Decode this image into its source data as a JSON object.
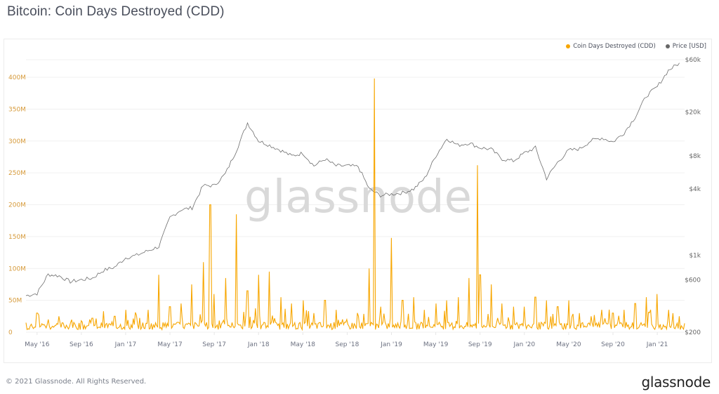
{
  "header": {
    "title": "Bitcoin: Coin Days Destroyed (CDD)"
  },
  "legend": {
    "items": [
      {
        "label": "Coin Days Destroyed (CDD)",
        "color": "#f7a600"
      },
      {
        "label": "Price [USD]",
        "color": "#666666"
      }
    ]
  },
  "watermark": "glassnode",
  "footer": {
    "copyright": "© 2021 Glassnode. All Rights Reserved.",
    "logo": "glassnode"
  },
  "colors": {
    "cdd": "#f7a600",
    "price": "#6e6e6e",
    "left_axis": "#d69a3a",
    "right_axis": "#666666",
    "grid": "#f0f0f0",
    "watermark": "#d9d9d9"
  },
  "chart_data": {
    "type": "line",
    "title": "Bitcoin: Coin Days Destroyed (CDD)",
    "xlabel": "",
    "ylabel_left": "Coin Days Destroyed (CDD)",
    "ylabel_right": "Price [USD]",
    "grid": true,
    "legend_position": "top-right",
    "x_ticks": [
      "May '16",
      "Sep '16",
      "Jan '17",
      "May '17",
      "Sep '17",
      "Jan '18",
      "May '18",
      "Sep '18",
      "Jan '19",
      "May '19",
      "Sep '19",
      "Jan '20",
      "May '20",
      "Sep '20",
      "Jan '21"
    ],
    "y_left_ticks": [
      "0",
      "50M",
      "100M",
      "150M",
      "200M",
      "250M",
      "300M",
      "350M",
      "400M"
    ],
    "y_left_range": [
      0,
      420000000
    ],
    "y_right_ticks": [
      "$200",
      "$600",
      "$1k",
      "$4k",
      "$8k",
      "$20k",
      "$60k"
    ],
    "y_right_scale": "log",
    "y_right_range": [
      200,
      60000
    ],
    "series": [
      {
        "name": "Coin Days Destroyed (CDD)",
        "axis": "left",
        "color": "#f7a600",
        "x": [
          "2016-04",
          "2016-05",
          "2016-06",
          "2016-07",
          "2016-08",
          "2016-09",
          "2016-10",
          "2016-11",
          "2016-12",
          "2017-01",
          "2017-02",
          "2017-03",
          "2017-04",
          "2017-05",
          "2017-06",
          "2017-07",
          "2017-08",
          "2017-08-20",
          "2017-09",
          "2017-10",
          "2017-11",
          "2017-12",
          "2018-01",
          "2018-02",
          "2018-03",
          "2018-04",
          "2018-05",
          "2018-06",
          "2018-07",
          "2018-08",
          "2018-09",
          "2018-10",
          "2018-11",
          "2018-11-15",
          "2018-12",
          "2019-01",
          "2019-02",
          "2019-03",
          "2019-04",
          "2019-05",
          "2019-06",
          "2019-07",
          "2019-08",
          "2019-08-25",
          "2019-09",
          "2019-10",
          "2019-11",
          "2019-12",
          "2020-01",
          "2020-02",
          "2020-03",
          "2020-04",
          "2020-05",
          "2020-06",
          "2020-07",
          "2020-08",
          "2020-09",
          "2020-10",
          "2020-11",
          "2020-12",
          "2021-01",
          "2021-02",
          "2021-03"
        ],
        "values": [
          15000000,
          30000000,
          20000000,
          25000000,
          15000000,
          18000000,
          22000000,
          15000000,
          25000000,
          35000000,
          20000000,
          35000000,
          90000000,
          40000000,
          45000000,
          75000000,
          110000000,
          200000000,
          60000000,
          85000000,
          185000000,
          65000000,
          90000000,
          95000000,
          55000000,
          45000000,
          50000000,
          30000000,
          50000000,
          35000000,
          20000000,
          25000000,
          100000000,
          398000000,
          40000000,
          148000000,
          50000000,
          55000000,
          35000000,
          45000000,
          50000000,
          55000000,
          85000000,
          262000000,
          90000000,
          75000000,
          45000000,
          40000000,
          40000000,
          55000000,
          50000000,
          40000000,
          50000000,
          30000000,
          25000000,
          35000000,
          30000000,
          35000000,
          45000000,
          55000000,
          60000000,
          35000000,
          25000000
        ]
      },
      {
        "name": "Price [USD]",
        "axis": "right",
        "color": "#6e6e6e",
        "x": [
          "2016-04",
          "2016-05",
          "2016-06",
          "2016-07",
          "2016-08",
          "2016-09",
          "2016-10",
          "2016-11",
          "2016-12",
          "2017-01",
          "2017-02",
          "2017-03",
          "2017-04",
          "2017-05",
          "2017-06",
          "2017-07",
          "2017-08",
          "2017-09",
          "2017-10",
          "2017-11",
          "2017-12",
          "2018-01",
          "2018-02",
          "2018-03",
          "2018-04",
          "2018-05",
          "2018-06",
          "2018-07",
          "2018-08",
          "2018-09",
          "2018-10",
          "2018-11",
          "2018-12",
          "2019-01",
          "2019-02",
          "2019-03",
          "2019-04",
          "2019-05",
          "2019-06",
          "2019-07",
          "2019-08",
          "2019-09",
          "2019-10",
          "2019-11",
          "2019-12",
          "2020-01",
          "2020-02",
          "2020-03",
          "2020-04",
          "2020-05",
          "2020-06",
          "2020-07",
          "2020-08",
          "2020-09",
          "2020-10",
          "2020-11",
          "2020-12",
          "2021-01",
          "2021-02",
          "2021-03"
        ],
        "values": [
          430,
          450,
          670,
          650,
          575,
          600,
          620,
          730,
          780,
          950,
          1000,
          1100,
          1200,
          2200,
          2600,
          2700,
          4300,
          4300,
          5500,
          9000,
          16000,
          11000,
          10000,
          9000,
          8000,
          8500,
          6500,
          7500,
          6500,
          6500,
          6400,
          4000,
          3500,
          3600,
          3700,
          4000,
          5000,
          8000,
          11500,
          10000,
          10500,
          9500,
          9200,
          7500,
          7200,
          8500,
          9500,
          5000,
          7000,
          9000,
          9300,
          11000,
          11700,
          10700,
          13000,
          18000,
          28000,
          34000,
          48000,
          56000
        ]
      }
    ]
  }
}
